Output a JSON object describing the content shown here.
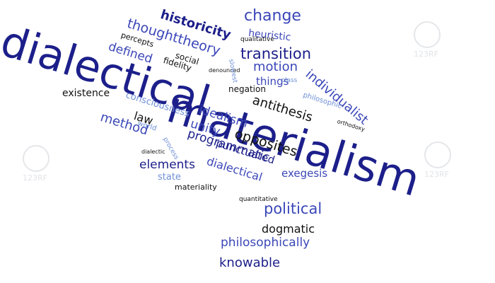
{
  "colors": {
    "background": "#ffffff",
    "dark_blue": "#1c1f8a",
    "medium_blue": "#3b47b8",
    "light_blue": "#6f8fd6",
    "black": "#111111"
  },
  "watermark": {
    "text": "123RF"
  },
  "words": [
    {
      "text": "dialectical",
      "color": "dark_blue",
      "weight": "normal"
    },
    {
      "text": "materialism",
      "color": "dark_blue",
      "weight": "normal"
    },
    {
      "text": "historicity",
      "color": "dark_blue",
      "weight": "bold"
    },
    {
      "text": "change",
      "color": "medium_blue",
      "weight": "normal"
    },
    {
      "text": "heuristic",
      "color": "medium_blue",
      "weight": "normal"
    },
    {
      "text": "qualitative",
      "color": "black",
      "weight": "normal"
    },
    {
      "text": "thoughttheory",
      "color": "medium_blue",
      "weight": "normal"
    },
    {
      "text": "percepts",
      "color": "black",
      "weight": "normal"
    },
    {
      "text": "defined",
      "color": "medium_blue",
      "weight": "normal"
    },
    {
      "text": "transition",
      "color": "dark_blue",
      "weight": "normal"
    },
    {
      "text": "social",
      "color": "black",
      "weight": "normal"
    },
    {
      "text": "fidelity",
      "color": "black",
      "weight": "normal"
    },
    {
      "text": "motion",
      "color": "medium_blue",
      "weight": "normal"
    },
    {
      "text": "denounced",
      "color": "black",
      "weight": "normal"
    },
    {
      "text": "slowest",
      "color": "light_blue",
      "weight": "normal"
    },
    {
      "text": "individualist",
      "color": "medium_blue",
      "weight": "normal"
    },
    {
      "text": "negation",
      "color": "black",
      "weight": "normal"
    },
    {
      "text": "things",
      "color": "medium_blue",
      "weight": "normal"
    },
    {
      "text": "class",
      "color": "light_blue",
      "weight": "normal"
    },
    {
      "text": "philosophic",
      "color": "light_blue",
      "weight": "normal"
    },
    {
      "text": "existence",
      "color": "black",
      "weight": "normal"
    },
    {
      "text": "antithesis",
      "color": "black",
      "weight": "normal"
    },
    {
      "text": "orthodoxy",
      "color": "black",
      "weight": "normal"
    },
    {
      "text": "consciousness",
      "color": "light_blue",
      "weight": "normal"
    },
    {
      "text": "law",
      "color": "black",
      "weight": "normal"
    },
    {
      "text": "method",
      "color": "medium_blue",
      "weight": "normal"
    },
    {
      "text": "idealism",
      "color": "medium_blue",
      "weight": "normal"
    },
    {
      "text": "opposites",
      "color": "black",
      "weight": "normal"
    },
    {
      "text": "world",
      "color": "light_blue",
      "weight": "normal"
    },
    {
      "text": "unity",
      "color": "medium_blue",
      "weight": "normal"
    },
    {
      "text": "punctuated",
      "color": "dark_blue",
      "weight": "normal"
    },
    {
      "text": "programmatic",
      "color": "dark_blue",
      "weight": "normal"
    },
    {
      "text": "dialectic",
      "color": "black",
      "weight": "normal"
    },
    {
      "text": "process",
      "color": "light_blue",
      "weight": "normal"
    },
    {
      "text": "elements",
      "color": "dark_blue",
      "weight": "normal"
    },
    {
      "text": "dialectical",
      "color": "medium_blue",
      "weight": "normal"
    },
    {
      "text": "exegesis",
      "color": "medium_blue",
      "weight": "normal"
    },
    {
      "text": "state",
      "color": "light_blue",
      "weight": "normal"
    },
    {
      "text": "materiality",
      "color": "black",
      "weight": "normal"
    },
    {
      "text": "quantitative",
      "color": "black",
      "weight": "normal"
    },
    {
      "text": "political",
      "color": "medium_blue",
      "weight": "normal"
    },
    {
      "text": "dogmatic",
      "color": "black",
      "weight": "normal"
    },
    {
      "text": "philosophically",
      "color": "medium_blue",
      "weight": "normal"
    },
    {
      "text": "knowable",
      "color": "dark_blue",
      "weight": "normal"
    }
  ]
}
